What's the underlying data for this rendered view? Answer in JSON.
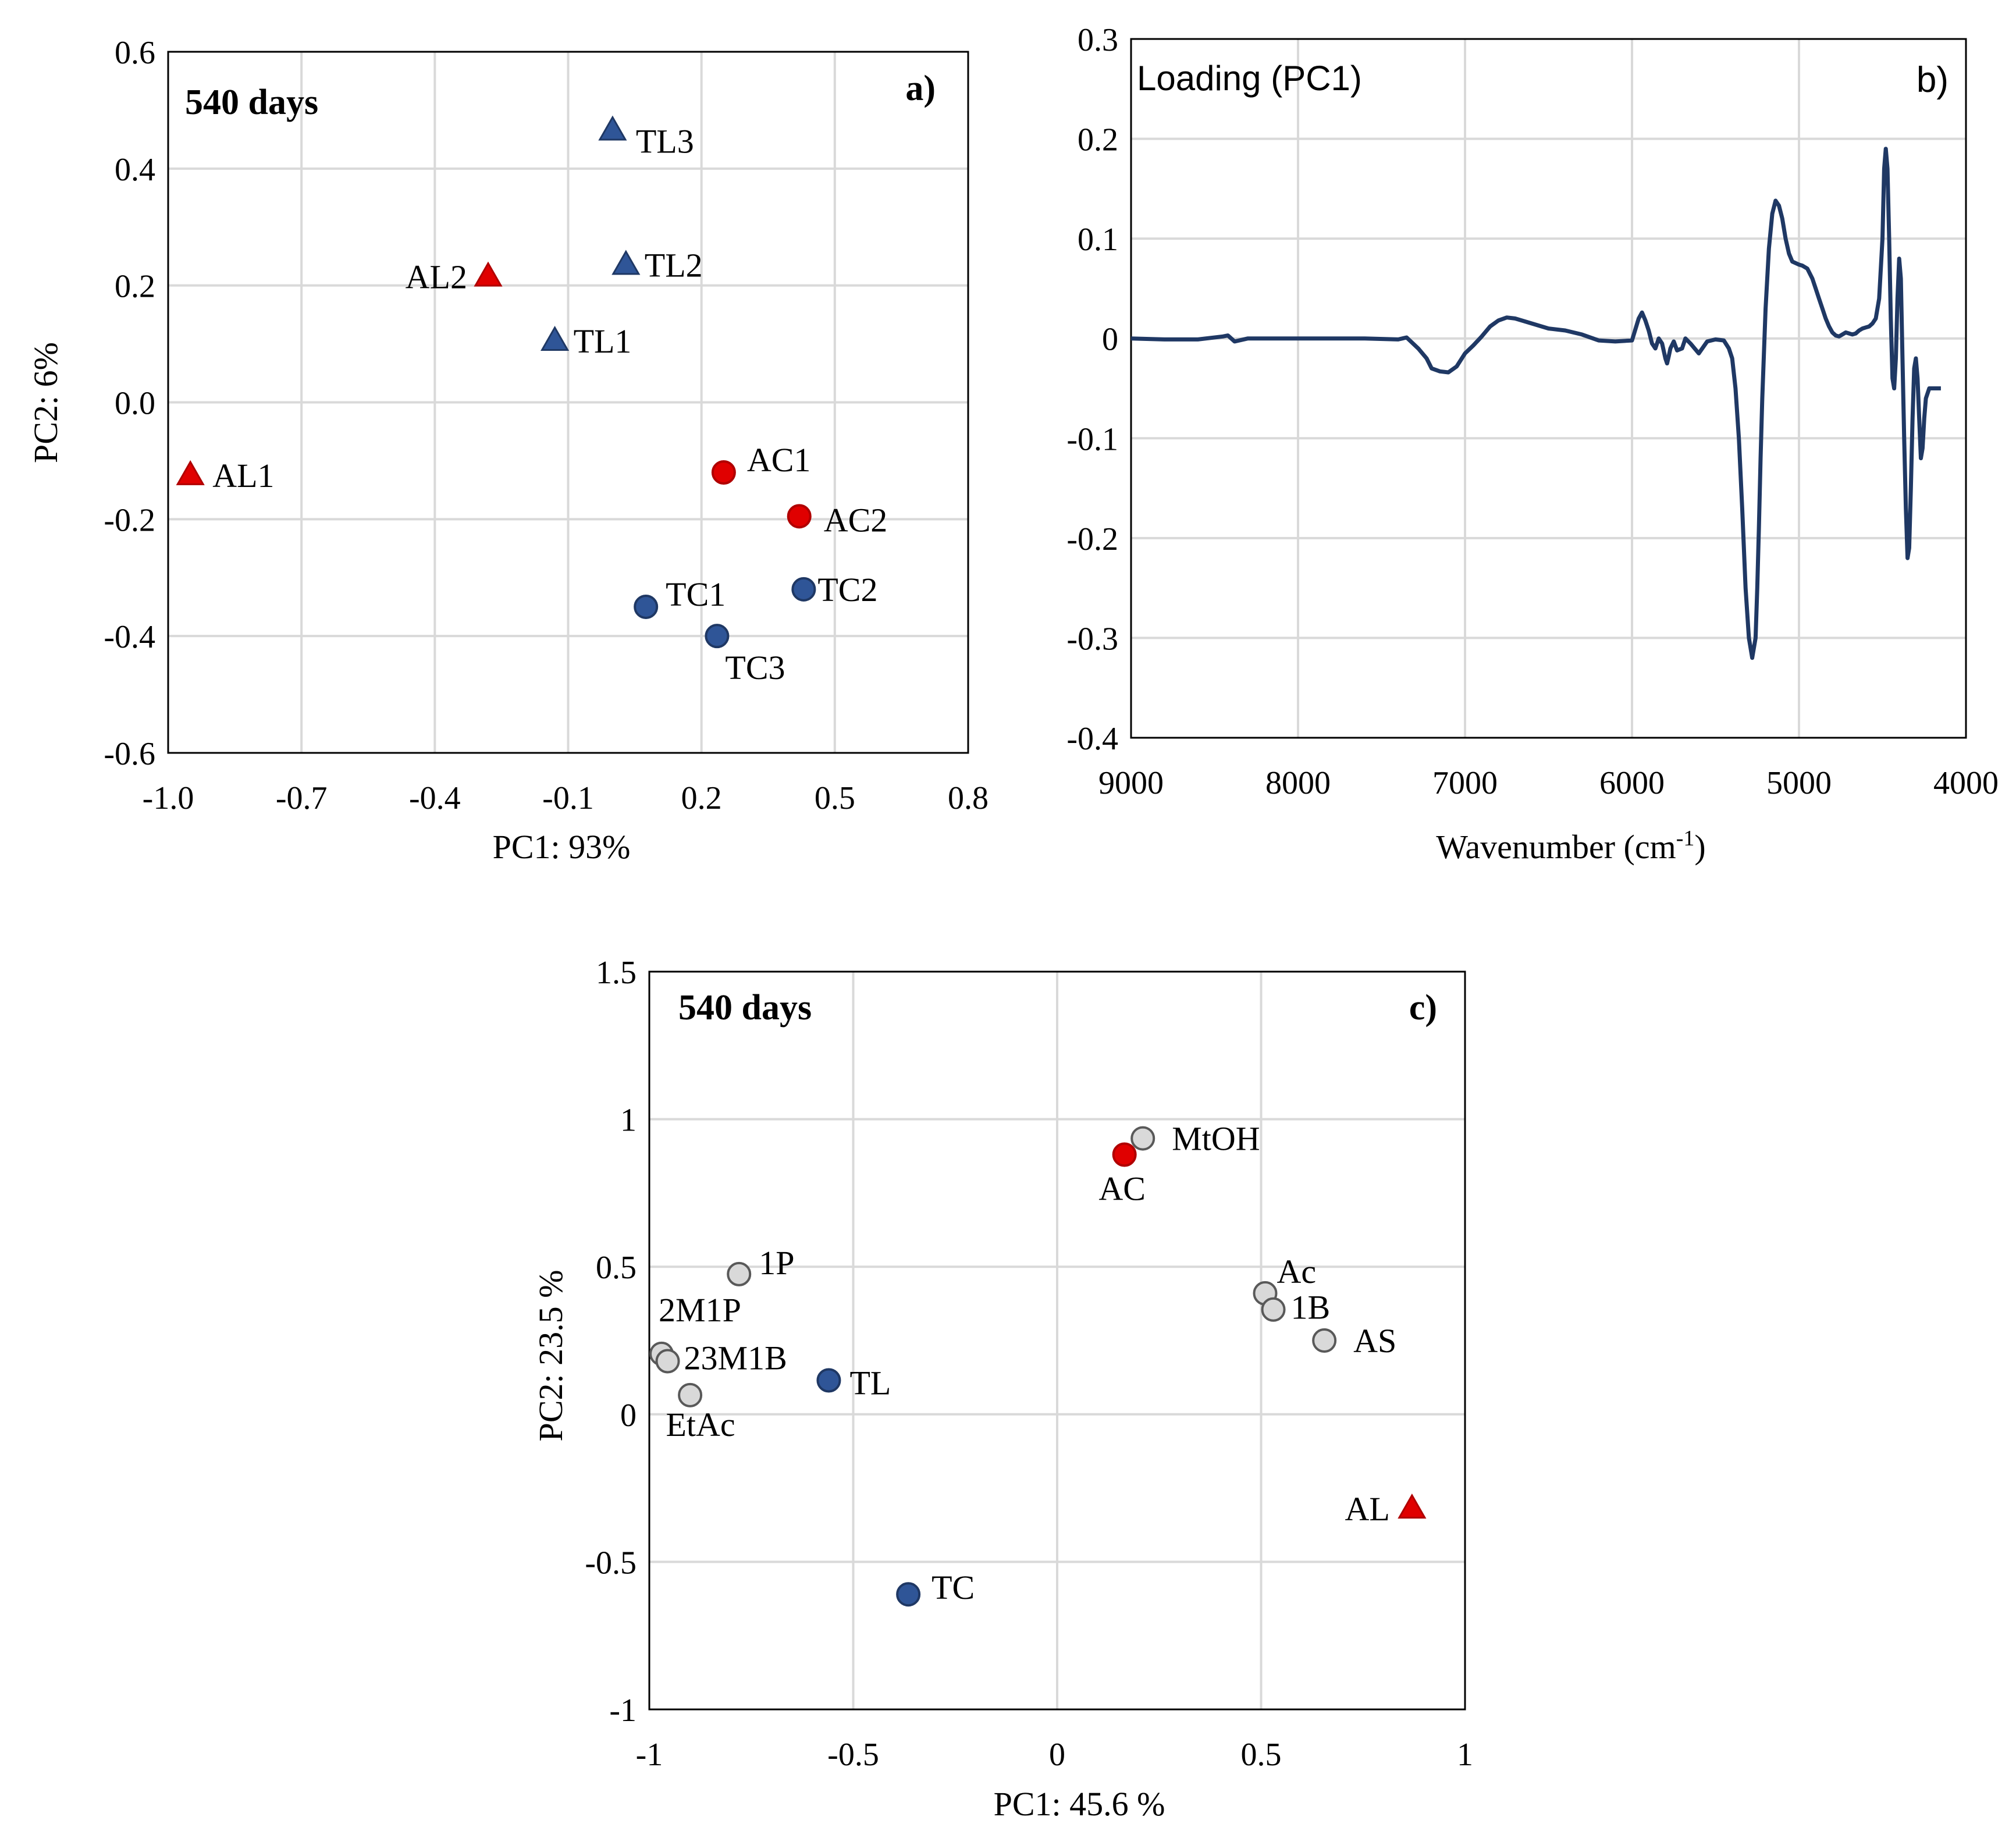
{
  "chart_data": [
    {
      "panel": "a)",
      "type": "scatter",
      "annotation": "540 days",
      "xlabel": "PC1: 93%",
      "ylabel": "PC2: 6%",
      "xlim": [
        -1.0,
        0.8
      ],
      "ylim": [
        -0.6,
        0.6
      ],
      "xticks": [
        "-1.0",
        "-0.7",
        "-0.4",
        "-0.1",
        "0.2",
        "0.5",
        "0.8"
      ],
      "yticks": [
        "0.6",
        "0.4",
        "0.2",
        "0.0",
        "-0.2",
        "-0.4",
        "-0.6"
      ],
      "grid": true,
      "points": [
        {
          "label": "AL1",
          "x": -0.95,
          "y": -0.125,
          "marker": "triangle",
          "color": "#e00000"
        },
        {
          "label": "AL2",
          "x": -0.28,
          "y": 0.215,
          "marker": "triangle",
          "color": "#e00000"
        },
        {
          "label": "TL1",
          "x": -0.13,
          "y": 0.105,
          "marker": "triangle",
          "color": "#2f5597"
        },
        {
          "label": "TL2",
          "x": 0.03,
          "y": 0.235,
          "marker": "triangle",
          "color": "#2f5597"
        },
        {
          "label": "TL3",
          "x": 0.0,
          "y": 0.465,
          "marker": "triangle",
          "color": "#2f5597"
        },
        {
          "label": "AC1",
          "x": 0.25,
          "y": -0.12,
          "marker": "circle",
          "color": "#e00000"
        },
        {
          "label": "AC2",
          "x": 0.42,
          "y": -0.195,
          "marker": "circle",
          "color": "#e00000"
        },
        {
          "label": "TC1",
          "x": 0.075,
          "y": -0.35,
          "marker": "circle",
          "color": "#2f5597"
        },
        {
          "label": "TC2",
          "x": 0.43,
          "y": -0.32,
          "marker": "circle",
          "color": "#2f5597"
        },
        {
          "label": "TC3",
          "x": 0.235,
          "y": -0.4,
          "marker": "circle",
          "color": "#2f5597"
        }
      ]
    },
    {
      "panel": "b)",
      "type": "line",
      "title": "Loading (PC1)",
      "xlabel": "Wavenumber (cm",
      "xlabel_sup": "-1",
      "xlabel_end": ")",
      "ylabel": "",
      "xlim": [
        9000,
        4000
      ],
      "ylim": [
        -0.4,
        0.3
      ],
      "xticks": [
        "9000",
        "8000",
        "7000",
        "6000",
        "5000",
        "4000"
      ],
      "yticks": [
        "0.3",
        "0.2",
        "0.1",
        "0",
        "-0.1",
        "-0.2",
        "-0.3",
        "-0.4"
      ],
      "grid": true,
      "color": "#1f3864",
      "series": [
        {
          "x": [
            9000,
            8800,
            8600,
            8450,
            8420,
            8380,
            8300,
            8000,
            7600,
            7400,
            7350,
            7280,
            7230,
            7200,
            7150,
            7100,
            7050,
            7000,
            6950,
            6900,
            6850,
            6800,
            6750,
            6700,
            6600,
            6500,
            6400,
            6300,
            6200,
            6100,
            6000,
            5960,
            5940,
            5920,
            5900,
            5880,
            5860,
            5840,
            5820,
            5800,
            5790,
            5780,
            5770,
            5750,
            5730,
            5700,
            5680,
            5650,
            5600,
            5550,
            5500,
            5450,
            5420,
            5400,
            5380,
            5360,
            5340,
            5320,
            5300,
            5280,
            5260,
            5250,
            5240,
            5230,
            5220,
            5200,
            5180,
            5160,
            5140,
            5120,
            5100,
            5080,
            5060,
            5040,
            5000,
            4980,
            4950,
            4920,
            4900,
            4880,
            4860,
            4840,
            4820,
            4800,
            4780,
            4760,
            4740,
            4720,
            4700,
            4680,
            4660,
            4640,
            4620,
            4600,
            4580,
            4560,
            4540,
            4520,
            4500,
            4490,
            4480,
            4470,
            4460,
            4450,
            4440,
            4430,
            4420,
            4410,
            4400,
            4390,
            4380,
            4370,
            4360,
            4350,
            4340,
            4330,
            4320,
            4310,
            4300,
            4290,
            4280,
            4270,
            4260,
            4250,
            4240,
            4230,
            4220,
            4210,
            4200,
            4190,
            4180,
            4170,
            4160,
            4150
          ],
          "y": [
            0.0,
            -0.001,
            -0.001,
            0.002,
            0.003,
            -0.003,
            0.0,
            0.0,
            0.0,
            -0.001,
            0.001,
            -0.01,
            -0.02,
            -0.03,
            -0.033,
            -0.034,
            -0.028,
            -0.015,
            -0.007,
            0.002,
            0.012,
            0.018,
            0.021,
            0.02,
            0.015,
            0.01,
            0.008,
            0.004,
            -0.002,
            -0.003,
            -0.002,
            0.02,
            0.026,
            0.018,
            0.008,
            -0.005,
            -0.01,
            0.0,
            -0.005,
            -0.02,
            -0.025,
            -0.018,
            -0.01,
            -0.003,
            -0.012,
            -0.01,
            0.0,
            -0.005,
            -0.015,
            -0.003,
            -0.001,
            -0.002,
            -0.01,
            -0.02,
            -0.05,
            -0.1,
            -0.17,
            -0.25,
            -0.3,
            -0.32,
            -0.3,
            -0.25,
            -0.19,
            -0.12,
            -0.06,
            0.03,
            0.09,
            0.125,
            0.138,
            0.133,
            0.12,
            0.1,
            0.085,
            0.077,
            0.074,
            0.073,
            0.07,
            0.06,
            0.05,
            0.04,
            0.03,
            0.02,
            0.012,
            0.006,
            0.003,
            0.002,
            0.004,
            0.006,
            0.005,
            0.004,
            0.005,
            0.008,
            0.01,
            0.011,
            0.012,
            0.015,
            0.02,
            0.04,
            0.1,
            0.17,
            0.19,
            0.17,
            0.1,
            0.02,
            -0.04,
            -0.05,
            -0.02,
            0.04,
            0.08,
            0.06,
            -0.02,
            -0.1,
            -0.17,
            -0.22,
            -0.21,
            -0.15,
            -0.08,
            -0.03,
            -0.02,
            -0.04,
            -0.08,
            -0.12,
            -0.11,
            -0.08,
            -0.06,
            -0.055,
            -0.05,
            -0.05,
            -0.05,
            -0.05,
            -0.05,
            -0.05,
            -0.05,
            -0.05
          ]
        }
      ]
    },
    {
      "panel": "c)",
      "type": "scatter",
      "annotation": "540 days",
      "xlabel": "PC1: 45.6 %",
      "ylabel": "PC2: 23.5 %",
      "xlim": [
        -1,
        1
      ],
      "ylim": [
        -1,
        1.5
      ],
      "xticks": [
        "-1",
        "-0.5",
        "0",
        "0.5",
        "1"
      ],
      "yticks": [
        "1.5",
        "1",
        "0.5",
        "0",
        "-0.5",
        "-1"
      ],
      "grid": true,
      "points": [
        {
          "label": "MtOH",
          "x": 0.21,
          "y": 0.935,
          "marker": "circle",
          "color": "#d9d9d9"
        },
        {
          "label": "AC",
          "x": 0.165,
          "y": 0.88,
          "marker": "circle",
          "color": "#e00000"
        },
        {
          "label": "1P",
          "x": -0.78,
          "y": 0.475,
          "marker": "circle",
          "color": "#d9d9d9"
        },
        {
          "label": "2M1P",
          "x": -0.97,
          "y": 0.205,
          "marker": "circle",
          "color": "#d9d9d9"
        },
        {
          "label": "23M1B",
          "x": -0.955,
          "y": 0.18,
          "marker": "circle",
          "color": "#d9d9d9"
        },
        {
          "label": "EtAc",
          "x": -0.9,
          "y": 0.065,
          "marker": "circle",
          "color": "#d9d9d9"
        },
        {
          "label": "TL",
          "x": -0.56,
          "y": 0.115,
          "marker": "circle",
          "color": "#2f5597"
        },
        {
          "label": "Ac",
          "x": 0.51,
          "y": 0.41,
          "marker": "circle",
          "color": "#d9d9d9"
        },
        {
          "label": "1B",
          "x": 0.53,
          "y": 0.355,
          "marker": "circle",
          "color": "#d9d9d9"
        },
        {
          "label": "AS",
          "x": 0.655,
          "y": 0.25,
          "marker": "circle",
          "color": "#d9d9d9"
        },
        {
          "label": "AL",
          "x": 0.87,
          "y": -0.32,
          "marker": "triangle",
          "color": "#e00000"
        },
        {
          "label": "TC",
          "x": -0.365,
          "y": -0.61,
          "marker": "circle",
          "color": "#2f5597"
        }
      ]
    }
  ]
}
